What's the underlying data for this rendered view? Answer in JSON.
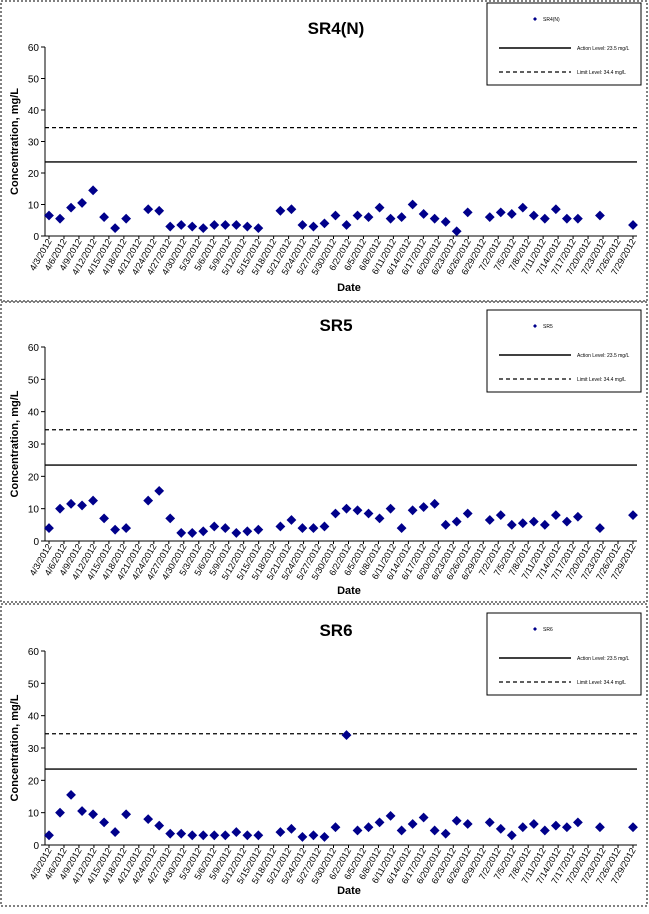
{
  "chart_data": [
    {
      "type": "scatter",
      "title": "SR4(N)",
      "xlabel": "Date",
      "ylabel": "Concentration, mg/L",
      "ylim": [
        0,
        60
      ],
      "yticks": [
        "0",
        "10",
        "20",
        "30",
        "40",
        "50",
        "60"
      ],
      "xticks": [
        "4/3/2012",
        "4/6/2012",
        "4/9/2012",
        "4/12/2012",
        "4/15/2012",
        "4/18/2012",
        "4/21/2012",
        "4/24/2012",
        "4/27/2012",
        "4/30/2012",
        "5/3/2012",
        "5/6/2012",
        "5/9/2012",
        "5/12/2012",
        "5/15/2012",
        "5/18/2012",
        "5/21/2012",
        "5/24/2012",
        "5/27/2012",
        "5/30/2012",
        "6/2/2012",
        "6/5/2012",
        "6/8/2012",
        "6/11/2012",
        "6/14/2012",
        "6/17/2012",
        "6/20/2012",
        "6/23/2012",
        "6/26/2012",
        "6/29/2012",
        "7/2/2012",
        "7/5/2012",
        "7/8/2012",
        "7/11/2012",
        "7/14/2012",
        "7/17/2012",
        "7/20/2012",
        "7/23/2012",
        "7/26/2012",
        "7/29/2012"
      ],
      "legend": {
        "position": "top-right",
        "series_label": "SR4(N)",
        "action_label": "Action Level: 23.5 mg/L",
        "limit_label": "Limit Level: 34.4 mg/L"
      },
      "action_level": 23.5,
      "limit_level": 34.4,
      "grid": false,
      "series": [
        {
          "name": "SR4(N)",
          "color": "#00008B",
          "points": [
            [
              0,
              6.5
            ],
            [
              1,
              5.5
            ],
            [
              2,
              9
            ],
            [
              3,
              10.5
            ],
            [
              4,
              14.5
            ],
            [
              5,
              6
            ],
            [
              6,
              2.5
            ],
            [
              7,
              5.5
            ],
            [
              9,
              8.5
            ],
            [
              10,
              8
            ],
            [
              11,
              3
            ],
            [
              12,
              3.5
            ],
            [
              13,
              3
            ],
            [
              14,
              2.5
            ],
            [
              15,
              3.5
            ],
            [
              16,
              3.5
            ],
            [
              17,
              3.5
            ],
            [
              18,
              3
            ],
            [
              19,
              2.5
            ],
            [
              21,
              8
            ],
            [
              22,
              8.5
            ],
            [
              23,
              3.5
            ],
            [
              24,
              3
            ],
            [
              25,
              4
            ],
            [
              26,
              6.5
            ],
            [
              27,
              3.5
            ],
            [
              28,
              6.5
            ],
            [
              29,
              6
            ],
            [
              30,
              9
            ],
            [
              31,
              5.5
            ],
            [
              32,
              6
            ],
            [
              33,
              10
            ],
            [
              34,
              7
            ],
            [
              35,
              5.5
            ],
            [
              36,
              4.5
            ],
            [
              37,
              1.5
            ],
            [
              38,
              7.5
            ],
            [
              40,
              6
            ],
            [
              41,
              7.5
            ],
            [
              42,
              7
            ],
            [
              43,
              9
            ],
            [
              44,
              6.5
            ],
            [
              45,
              5.5
            ],
            [
              46,
              8.5
            ],
            [
              47,
              5.5
            ],
            [
              48,
              5.5
            ],
            [
              50,
              6.5
            ],
            [
              53,
              3.5
            ]
          ]
        }
      ]
    },
    {
      "type": "scatter",
      "title": "SR5",
      "xlabel": "Date",
      "ylabel": "Concentration, mg/L",
      "ylim": [
        0,
        60
      ],
      "yticks": [
        "0",
        "10",
        "20",
        "30",
        "40",
        "50",
        "60"
      ],
      "xticks": [
        "4/3/2012",
        "4/6/2012",
        "4/9/2012",
        "4/12/2012",
        "4/15/2012",
        "4/18/2012",
        "4/21/2012",
        "4/24/2012",
        "4/27/2012",
        "4/30/2012",
        "5/3/2012",
        "5/6/2012",
        "5/9/2012",
        "5/12/2012",
        "5/15/2012",
        "5/18/2012",
        "5/21/2012",
        "5/24/2012",
        "5/27/2012",
        "5/30/2012",
        "6/2/2012",
        "6/5/2012",
        "6/8/2012",
        "6/11/2012",
        "6/14/2012",
        "6/17/2012",
        "6/20/2012",
        "6/23/2012",
        "6/26/2012",
        "6/29/2012",
        "7/2/2012",
        "7/5/2012",
        "7/8/2012",
        "7/11/2012",
        "7/14/2012",
        "7/17/2012",
        "7/20/2012",
        "7/23/2012",
        "7/26/2012",
        "7/29/2012"
      ],
      "legend": {
        "position": "top-right",
        "series_label": "SR5",
        "action_label": "Action Level: 23.5 mg/L",
        "limit_label": "Limit Level: 34.4 mg/L"
      },
      "action_level": 23.5,
      "limit_level": 34.4,
      "grid": false,
      "series": [
        {
          "name": "SR5",
          "color": "#00008B",
          "points": [
            [
              0,
              4
            ],
            [
              1,
              10
            ],
            [
              2,
              11.5
            ],
            [
              3,
              11
            ],
            [
              4,
              12.5
            ],
            [
              5,
              7
            ],
            [
              6,
              3.5
            ],
            [
              7,
              4
            ],
            [
              9,
              12.5
            ],
            [
              10,
              15.5
            ],
            [
              11,
              7
            ],
            [
              12,
              2.5
            ],
            [
              13,
              2.5
            ],
            [
              14,
              3
            ],
            [
              15,
              4.5
            ],
            [
              16,
              4
            ],
            [
              17,
              2.5
            ],
            [
              18,
              3
            ],
            [
              19,
              3.5
            ],
            [
              21,
              4.5
            ],
            [
              22,
              6.5
            ],
            [
              23,
              4
            ],
            [
              24,
              4
            ],
            [
              25,
              4.5
            ],
            [
              26,
              8.5
            ],
            [
              27,
              10
            ],
            [
              28,
              9.5
            ],
            [
              29,
              8.5
            ],
            [
              30,
              7
            ],
            [
              31,
              10
            ],
            [
              32,
              4
            ],
            [
              33,
              9.5
            ],
            [
              34,
              10.5
            ],
            [
              35,
              11.5
            ],
            [
              36,
              5
            ],
            [
              37,
              6
            ],
            [
              38,
              8.5
            ],
            [
              40,
              6.5
            ],
            [
              41,
              8
            ],
            [
              42,
              5
            ],
            [
              43,
              5.5
            ],
            [
              44,
              6
            ],
            [
              45,
              5
            ],
            [
              46,
              8
            ],
            [
              47,
              6
            ],
            [
              48,
              7.5
            ],
            [
              50,
              4
            ],
            [
              53,
              8
            ]
          ]
        }
      ]
    },
    {
      "type": "scatter",
      "title": "SR6",
      "xlabel": "Date",
      "ylabel": "Concentration, mg/L",
      "ylim": [
        0,
        60
      ],
      "yticks": [
        "0",
        "10",
        "20",
        "30",
        "40",
        "50",
        "60"
      ],
      "xticks": [
        "4/3/2012",
        "4/6/2012",
        "4/9/2012",
        "4/12/2012",
        "4/15/2012",
        "4/18/2012",
        "4/21/2012",
        "4/24/2012",
        "4/27/2012",
        "4/30/2012",
        "5/3/2012",
        "5/6/2012",
        "5/9/2012",
        "5/12/2012",
        "5/15/2012",
        "5/18/2012",
        "5/21/2012",
        "5/24/2012",
        "5/27/2012",
        "5/30/2012",
        "6/2/2012",
        "6/5/2012",
        "6/8/2012",
        "6/11/2012",
        "6/14/2012",
        "6/17/2012",
        "6/20/2012",
        "6/23/2012",
        "6/26/2012",
        "6/29/2012",
        "7/2/2012",
        "7/5/2012",
        "7/8/2012",
        "7/11/2012",
        "7/14/2012",
        "7/17/2012",
        "7/20/2012",
        "7/23/2012",
        "7/26/2012",
        "7/29/2012"
      ],
      "legend": {
        "position": "top-right",
        "series_label": "SR6",
        "action_label": "Action Level: 23.5 mg/L",
        "limit_label": "Limit Level: 34.4 mg/L"
      },
      "action_level": 23.5,
      "limit_level": 34.4,
      "grid": false,
      "series": [
        {
          "name": "SR6",
          "color": "#00008B",
          "points": [
            [
              0,
              3
            ],
            [
              1,
              10
            ],
            [
              2,
              15.5
            ],
            [
              3,
              10.5
            ],
            [
              4,
              9.5
            ],
            [
              5,
              7
            ],
            [
              6,
              4
            ],
            [
              7,
              9.5
            ],
            [
              9,
              8
            ],
            [
              10,
              6
            ],
            [
              11,
              3.5
            ],
            [
              12,
              3.5
            ],
            [
              13,
              3
            ],
            [
              14,
              3
            ],
            [
              15,
              3
            ],
            [
              16,
              3
            ],
            [
              17,
              4
            ],
            [
              18,
              3
            ],
            [
              19,
              3
            ],
            [
              21,
              4
            ],
            [
              22,
              5
            ],
            [
              23,
              2.5
            ],
            [
              24,
              3
            ],
            [
              25,
              2.5
            ],
            [
              26,
              5.5
            ],
            [
              27,
              34
            ],
            [
              28,
              4.5
            ],
            [
              29,
              5.5
            ],
            [
              30,
              7
            ],
            [
              31,
              9
            ],
            [
              32,
              4.5
            ],
            [
              33,
              6.5
            ],
            [
              34,
              8.5
            ],
            [
              35,
              4.5
            ],
            [
              36,
              3.5
            ],
            [
              37,
              7.5
            ],
            [
              38,
              6.5
            ],
            [
              40,
              7
            ],
            [
              41,
              5
            ],
            [
              42,
              3
            ],
            [
              43,
              5.5
            ],
            [
              44,
              6.5
            ],
            [
              45,
              4.5
            ],
            [
              46,
              6
            ],
            [
              47,
              5.5
            ],
            [
              48,
              7
            ],
            [
              50,
              5.5
            ],
            [
              53,
              5.5
            ]
          ]
        }
      ]
    }
  ]
}
